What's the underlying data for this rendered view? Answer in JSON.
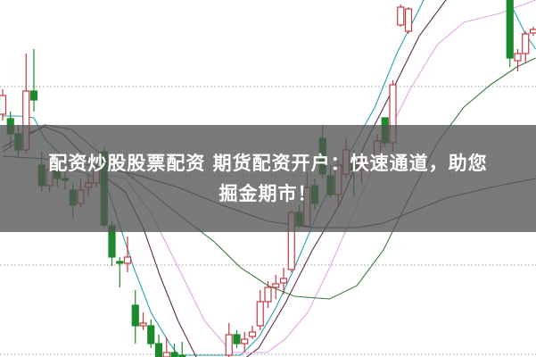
{
  "headline": {
    "line1": "配资炒股股票配资 期货配资开户：快速通道，助您",
    "line2": "掘金期市！"
  },
  "chart_data": {
    "type": "candlestick",
    "title": "",
    "xlabel": "",
    "ylabel": "",
    "ylim": [
      0,
      40
    ],
    "grid": {
      "horizontal": true,
      "style": "dotted",
      "levels": [
        0.3,
        10.3,
        20.3,
        30.3
      ]
    },
    "colors": {
      "up": "#c23a3f",
      "down": "#1c8a2c",
      "grid": "#b0b0b0"
    },
    "candle_fields": [
      "index",
      "open",
      "high",
      "low",
      "close"
    ],
    "candles": [
      [
        0,
        27.2,
        30,
        26.5,
        29.3
      ],
      [
        1,
        26.7,
        27.5,
        23.5,
        25
      ],
      [
        2,
        25,
        26,
        22.5,
        23.2
      ],
      [
        3,
        23.2,
        34,
        22.8,
        29.8
      ],
      [
        4,
        29.8,
        34.5,
        27.5,
        28.8
      ],
      [
        5,
        21.5,
        23,
        18.5,
        19.2
      ],
      [
        6,
        19.2,
        22.5,
        18.5,
        21
      ],
      [
        7,
        21,
        22,
        19,
        20
      ],
      [
        8,
        20,
        20.8,
        18.7,
        19.8
      ],
      [
        9,
        18.7,
        19.5,
        15.5,
        17
      ],
      [
        10,
        17.2,
        20,
        16.8,
        18.7
      ],
      [
        11,
        19,
        20.5,
        18,
        19.5
      ],
      [
        12,
        19.5,
        22,
        19,
        21
      ],
      [
        13,
        23,
        23.5,
        14.5,
        14.8
      ],
      [
        14,
        14.7,
        15.2,
        10.2,
        11.2
      ],
      [
        15,
        10.7,
        11.2,
        7.8,
        10.5
      ],
      [
        16,
        10.5,
        13.5,
        9.5,
        11.2
      ],
      [
        17,
        5.8,
        7.5,
        1.5,
        3.5
      ],
      [
        18,
        3.5,
        5,
        3,
        3.8
      ],
      [
        19,
        3.5,
        4.2,
        1,
        1.5
      ],
      [
        20,
        1.5,
        2.5,
        -1,
        0
      ],
      [
        21,
        0,
        2.2,
        -1,
        0.5
      ],
      [
        22,
        0.5,
        1.5,
        -1,
        0
      ],
      [
        23,
        0.2,
        1.7,
        -1,
        0
      ],
      [
        29,
        0.2,
        3.8,
        -1,
        2.5
      ],
      [
        30,
        2.5,
        3,
        1,
        1.5
      ],
      [
        31,
        1.5,
        2.8,
        0.5,
        2
      ],
      [
        32,
        2.3,
        3.5,
        2,
        2.8
      ],
      [
        33,
        3.5,
        7.5,
        3,
        6.2
      ],
      [
        34,
        6.2,
        8.5,
        5.5,
        7.8
      ],
      [
        35,
        7.8,
        9.2,
        6.5,
        8.2
      ],
      [
        36,
        8.3,
        10,
        7,
        8.8
      ],
      [
        37,
        9.8,
        16.5,
        9.5,
        16.2
      ],
      [
        38,
        16.2,
        17,
        14.5,
        14.7
      ],
      [
        39,
        14.7,
        20.7,
        14.5,
        19
      ],
      [
        40,
        19.2,
        20,
        16.5,
        17.2
      ],
      [
        41,
        24.5,
        26,
        20,
        20.5
      ],
      [
        42,
        20.3,
        21.5,
        17.8,
        18.2
      ],
      [
        43,
        18.2,
        22,
        16.8,
        21.5
      ],
      [
        44,
        20.5,
        24.5,
        20,
        23.2
      ],
      [
        45,
        21.8,
        23.2,
        18,
        21
      ],
      [
        46,
        21,
        23,
        19.5,
        22.2
      ],
      [
        48,
        22,
        25,
        21.5,
        24.2
      ],
      [
        49,
        26.8,
        26.8,
        23.5,
        24
      ],
      [
        50,
        24,
        31,
        23,
        30.5
      ],
      [
        51,
        37.2,
        39.5,
        37,
        39.2
      ],
      [
        52,
        36.5,
        39.2,
        36.2,
        39
      ],
      [
        65,
        41,
        41,
        32.5,
        33.5
      ],
      [
        66,
        33.2,
        34.5,
        32,
        34
      ],
      [
        67,
        34,
        36.5,
        33,
        36.2
      ],
      [
        68,
        36.3,
        37,
        36,
        36.7
      ]
    ],
    "moving_averages": [
      {
        "color": "#2a9fb3",
        "points": [
          [
            0,
            27
          ],
          [
            2,
            27
          ],
          [
            4,
            26.8
          ],
          [
            5.4,
            24.5
          ],
          [
            7.6,
            22.5
          ],
          [
            8.8,
            21
          ],
          [
            11,
            20.5
          ],
          [
            13.4,
            19
          ],
          [
            14.9,
            15
          ],
          [
            16.8,
            10
          ],
          [
            19,
            5
          ],
          [
            21.4,
            1.5
          ],
          [
            22.5,
            0.2
          ],
          [
            30.5,
            0.2
          ],
          [
            32.8,
            2.2
          ],
          [
            35,
            5.5
          ],
          [
            37.4,
            10
          ],
          [
            40.8,
            17
          ],
          [
            44.2,
            22.5
          ],
          [
            47.7,
            28
          ],
          [
            50.5,
            34
          ],
          [
            53.4,
            39
          ],
          [
            55,
            42
          ],
          [
            64.5,
            42
          ],
          [
            65.4,
            39
          ],
          [
            67.1,
            36
          ],
          [
            68.3,
            34.5
          ]
        ]
      },
      {
        "color": "#5b2d4d",
        "points": [
          [
            0,
            23.5
          ],
          [
            3.1,
            25
          ],
          [
            5.4,
            25.8
          ],
          [
            7.7,
            25
          ],
          [
            11.1,
            22
          ],
          [
            13.4,
            20
          ],
          [
            15.7,
            18.5
          ],
          [
            18,
            14.5
          ],
          [
            20.2,
            9
          ],
          [
            22.5,
            4
          ],
          [
            24.8,
            0
          ],
          [
            27,
            -1
          ],
          [
            29,
            -1.5
          ],
          [
            32.8,
            1
          ],
          [
            36.2,
            6
          ],
          [
            39.7,
            12
          ],
          [
            43.1,
            17
          ],
          [
            46.5,
            24
          ],
          [
            50,
            30
          ],
          [
            53.4,
            36
          ],
          [
            56.8,
            40
          ],
          [
            60,
            44
          ]
        ]
      },
      {
        "color": "#e2a4e2",
        "points": [
          [
            11,
            21
          ],
          [
            13,
            20.5
          ],
          [
            15.7,
            20
          ],
          [
            19.1,
            16
          ],
          [
            22.5,
            10
          ],
          [
            25.9,
            4
          ],
          [
            29.4,
            0.5
          ],
          [
            33.9,
            0.5
          ],
          [
            36.2,
            2
          ],
          [
            39.1,
            5
          ],
          [
            41.9,
            10
          ],
          [
            45.4,
            17
          ],
          [
            48.8,
            24
          ],
          [
            52.2,
            30
          ],
          [
            55.7,
            35
          ],
          [
            59.1,
            37.5
          ],
          [
            63.7,
            38.5
          ],
          [
            68.3,
            40
          ]
        ]
      },
      {
        "color": "#3c7a3c",
        "points": [
          [
            0,
            23
          ],
          [
            5.4,
            26
          ],
          [
            8.8,
            25.5
          ],
          [
            12.2,
            23
          ],
          [
            16.8,
            20
          ],
          [
            22.5,
            16
          ],
          [
            27,
            13
          ],
          [
            30.5,
            10
          ],
          [
            34,
            8
          ],
          [
            37.4,
            6.8
          ],
          [
            41.9,
            6.5
          ],
          [
            45.4,
            8
          ],
          [
            48.8,
            12
          ],
          [
            52.2,
            18
          ],
          [
            55.7,
            24
          ],
          [
            59.1,
            28
          ],
          [
            62.5,
            30.5
          ],
          [
            65.9,
            32.5
          ],
          [
            68.3,
            33.5
          ]
        ]
      },
      {
        "color": "#2f5c68",
        "points": [
          [
            0,
            22.5
          ],
          [
            5.4,
            22.2
          ],
          [
            11.1,
            21.5
          ],
          [
            16.8,
            20.5
          ],
          [
            22.5,
            19
          ],
          [
            28.2,
            17
          ],
          [
            34,
            15.2
          ],
          [
            39.7,
            14.5
          ],
          [
            45.4,
            14.5
          ],
          [
            48.8,
            15
          ],
          [
            52.2,
            16.2
          ],
          [
            56.8,
            17.8
          ],
          [
            62.5,
            19
          ],
          [
            68.3,
            20
          ]
        ]
      }
    ]
  }
}
